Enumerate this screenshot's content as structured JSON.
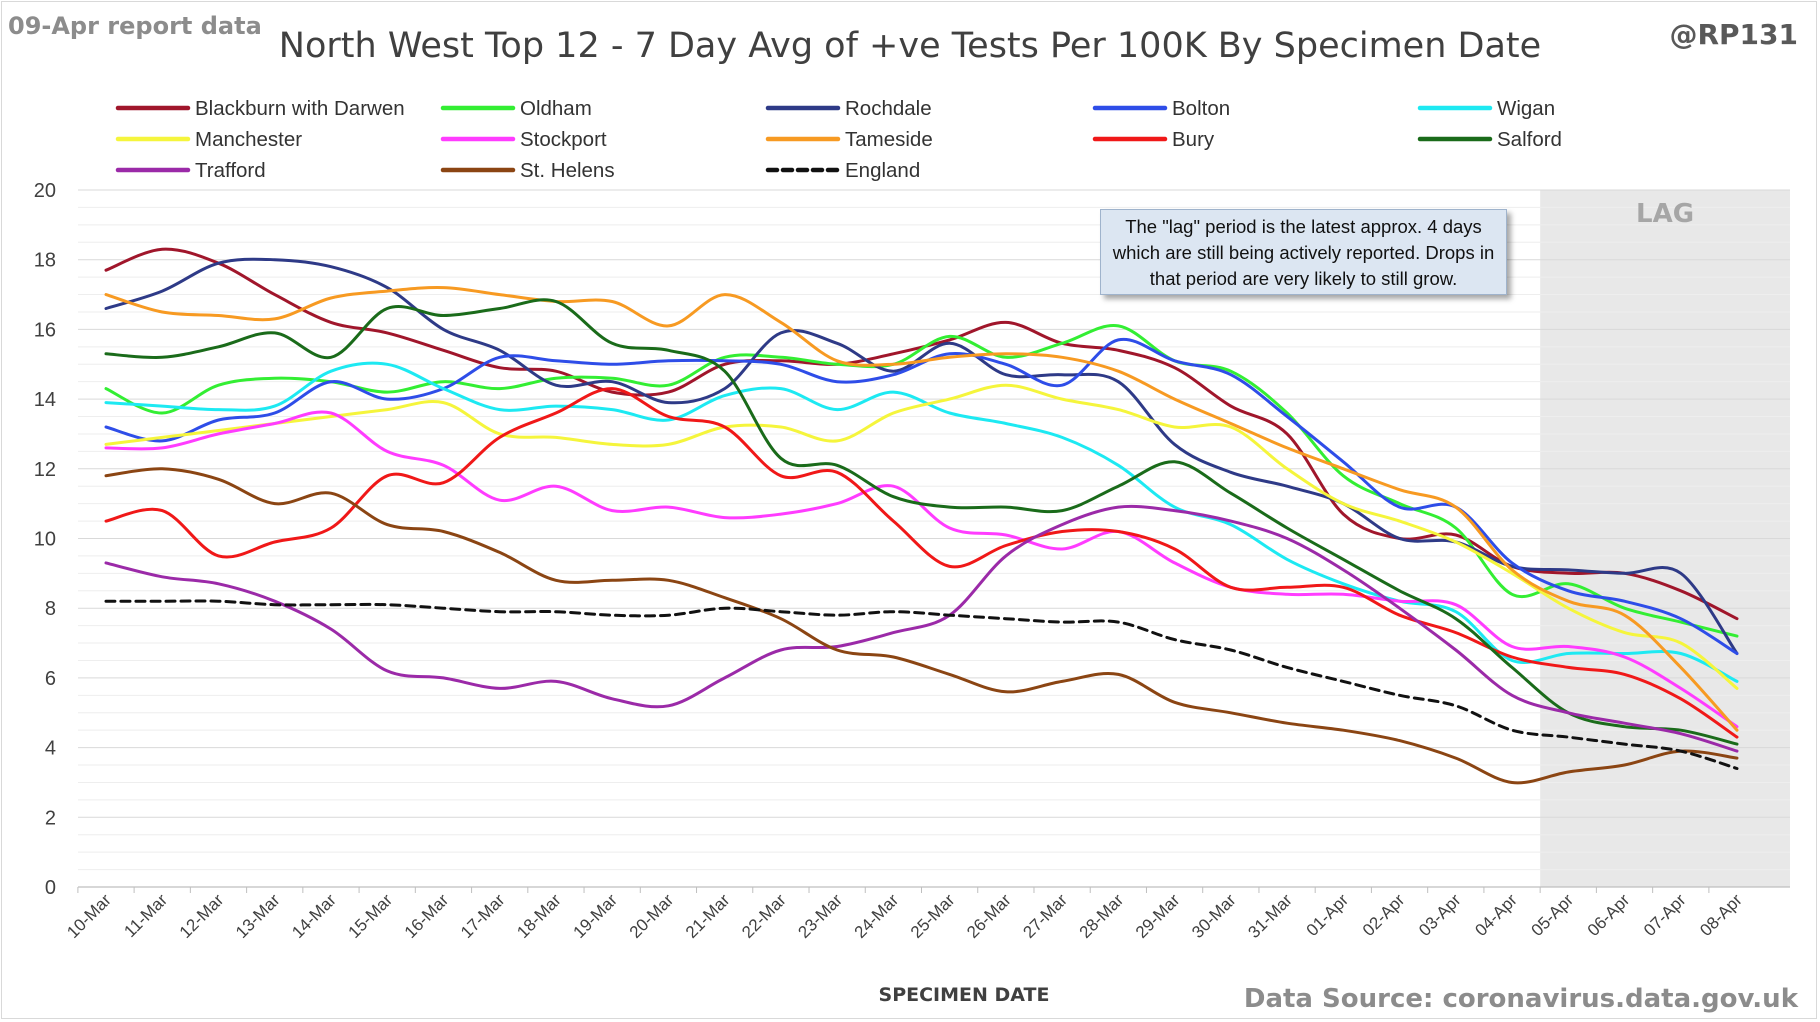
{
  "header": {
    "report_label": "09-Apr report data",
    "handle": "@RP131",
    "title": "North West Top 12 - 7 Day Avg of +ve Tests Per 100K By Specimen Date",
    "source": "Data Source: coronavirus.data.gov.uk"
  },
  "annotation": {
    "text": "The \"lag\" period is the latest approx. 4 days which are still being actively reported.  Drops in that period are very likely to still grow."
  },
  "colors": {
    "lag_shade": "#e8e8e8",
    "gridline": "#d9d9d9",
    "axis_text": "#404040"
  },
  "chart_data": {
    "type": "line",
    "title": "North West Top 12 - 7 Day Avg of +ve Tests Per 100K By Specimen Date",
    "xlabel": "SPECIMEN DATE",
    "ylabel": "",
    "ylim": [
      0,
      20
    ],
    "yticks": [
      0,
      2,
      4,
      6,
      8,
      10,
      12,
      14,
      16,
      18,
      20
    ],
    "grid": true,
    "legend_position": "top",
    "lag_label": "LAG",
    "lag_start": "04-Apr",
    "categories": [
      "10-Mar",
      "11-Mar",
      "12-Mar",
      "13-Mar",
      "14-Mar",
      "15-Mar",
      "16-Mar",
      "17-Mar",
      "18-Mar",
      "19-Mar",
      "20-Mar",
      "21-Mar",
      "22-Mar",
      "23-Mar",
      "24-Mar",
      "25-Mar",
      "26-Mar",
      "27-Mar",
      "28-Mar",
      "29-Mar",
      "30-Mar",
      "31-Mar",
      "01-Apr",
      "02-Apr",
      "03-Apr",
      "04-Apr",
      "05-Apr",
      "06-Apr",
      "07-Apr",
      "08-Apr"
    ],
    "series": [
      {
        "name": "Blackburn with Darwen",
        "color": "#a0162b",
        "dash": false,
        "values": [
          17.7,
          18.3,
          17.9,
          17.0,
          16.2,
          15.9,
          15.4,
          14.9,
          14.8,
          14.2,
          14.2,
          15.0,
          15.1,
          15.0,
          15.3,
          15.7,
          16.2,
          15.6,
          15.4,
          14.9,
          13.8,
          13.0,
          10.7,
          10.0,
          10.1,
          9.2,
          9.0,
          9.0,
          8.5,
          7.7
        ]
      },
      {
        "name": "Oldham",
        "color": "#33ee33",
        "dash": false,
        "values": [
          14.3,
          13.6,
          14.4,
          14.6,
          14.5,
          14.2,
          14.5,
          14.3,
          14.6,
          14.6,
          14.4,
          15.2,
          15.2,
          15.0,
          15.0,
          15.8,
          15.2,
          15.6,
          16.1,
          15.1,
          14.8,
          13.6,
          11.8,
          11.0,
          10.3,
          8.4,
          8.7,
          8.0,
          7.6,
          7.2
        ]
      },
      {
        "name": "Rochdale",
        "color": "#2e3a87",
        "dash": false,
        "values": [
          16.6,
          17.1,
          17.9,
          18.0,
          17.8,
          17.2,
          16.0,
          15.4,
          14.4,
          14.5,
          13.9,
          14.3,
          15.9,
          15.6,
          14.8,
          15.6,
          14.7,
          14.7,
          14.5,
          12.7,
          11.9,
          11.5,
          11.0,
          10.0,
          9.9,
          9.2,
          9.1,
          9.0,
          9.0,
          6.7
        ]
      },
      {
        "name": "Bolton",
        "color": "#2e4de8",
        "dash": false,
        "values": [
          13.2,
          12.8,
          13.4,
          13.6,
          14.5,
          14.0,
          14.3,
          15.2,
          15.1,
          15.0,
          15.1,
          15.1,
          15.0,
          14.5,
          14.7,
          15.3,
          15.0,
          14.4,
          15.7,
          15.1,
          14.7,
          13.5,
          12.2,
          10.9,
          10.9,
          9.3,
          8.5,
          8.2,
          7.7,
          6.7
        ]
      },
      {
        "name": "Wigan",
        "color": "#1de9f2",
        "dash": false,
        "values": [
          13.9,
          13.8,
          13.7,
          13.8,
          14.8,
          15.0,
          14.3,
          13.7,
          13.8,
          13.7,
          13.4,
          14.1,
          14.3,
          13.7,
          14.2,
          13.6,
          13.3,
          12.9,
          12.1,
          10.9,
          10.4,
          9.4,
          8.7,
          8.2,
          7.9,
          6.5,
          6.7,
          6.7,
          6.7,
          5.9
        ]
      },
      {
        "name": "Manchester",
        "color": "#f5f53c",
        "dash": false,
        "values": [
          12.7,
          12.9,
          13.1,
          13.3,
          13.5,
          13.7,
          13.9,
          13.0,
          12.9,
          12.7,
          12.7,
          13.2,
          13.2,
          12.8,
          13.6,
          14.0,
          14.4,
          14.0,
          13.7,
          13.2,
          13.2,
          12.0,
          11.0,
          10.5,
          9.9,
          9.0,
          8.0,
          7.3,
          7.0,
          5.7
        ]
      },
      {
        "name": "Stockport",
        "color": "#ff3cff",
        "dash": false,
        "values": [
          12.6,
          12.6,
          13.0,
          13.3,
          13.6,
          12.5,
          12.1,
          11.1,
          11.5,
          10.8,
          10.9,
          10.6,
          10.7,
          11.0,
          11.5,
          10.3,
          10.1,
          9.7,
          10.2,
          9.3,
          8.6,
          8.4,
          8.4,
          8.2,
          8.1,
          6.9,
          6.9,
          6.6,
          5.7,
          4.6
        ]
      },
      {
        "name": "Tameside",
        "color": "#f79a22",
        "dash": false,
        "values": [
          17.0,
          16.5,
          16.4,
          16.3,
          16.9,
          17.1,
          17.2,
          17.0,
          16.8,
          16.8,
          16.1,
          17.0,
          16.2,
          15.1,
          15.0,
          15.2,
          15.3,
          15.2,
          14.8,
          14.0,
          13.3,
          12.6,
          12.0,
          11.4,
          10.9,
          9.1,
          8.2,
          7.8,
          6.3,
          4.5
        ]
      },
      {
        "name": "Bury",
        "color": "#f01818",
        "dash": false,
        "values": [
          10.5,
          10.8,
          9.5,
          9.9,
          10.3,
          11.8,
          11.6,
          12.9,
          13.6,
          14.3,
          13.5,
          13.2,
          11.8,
          11.9,
          10.5,
          9.2,
          9.8,
          10.2,
          10.2,
          9.7,
          8.6,
          8.6,
          8.6,
          7.8,
          7.3,
          6.6,
          6.3,
          6.1,
          5.4,
          4.3
        ]
      },
      {
        "name": "Salford",
        "color": "#1a6b1a",
        "dash": false,
        "values": [
          15.3,
          15.2,
          15.5,
          15.9,
          15.2,
          16.6,
          16.4,
          16.6,
          16.8,
          15.6,
          15.4,
          14.8,
          12.3,
          12.1,
          11.2,
          10.9,
          10.9,
          10.8,
          11.5,
          12.2,
          11.3,
          10.3,
          9.4,
          8.5,
          7.7,
          6.3,
          5.0,
          4.6,
          4.5,
          4.1
        ]
      },
      {
        "name": "Trafford",
        "color": "#9b2aa8",
        "dash": false,
        "values": [
          9.3,
          8.9,
          8.7,
          8.2,
          7.4,
          6.2,
          6.0,
          5.7,
          5.9,
          5.4,
          5.2,
          6.0,
          6.8,
          6.9,
          7.3,
          7.8,
          9.5,
          10.4,
          10.9,
          10.8,
          10.5,
          10.0,
          9.1,
          8.0,
          6.8,
          5.5,
          5.0,
          4.7,
          4.4,
          3.9
        ]
      },
      {
        "name": "St. Helens",
        "color": "#8b4513",
        "dash": false,
        "values": [
          11.8,
          12.0,
          11.7,
          11.0,
          11.3,
          10.4,
          10.2,
          9.6,
          8.8,
          8.8,
          8.8,
          8.3,
          7.7,
          6.8,
          6.6,
          6.1,
          5.6,
          5.9,
          6.1,
          5.3,
          5.0,
          4.7,
          4.5,
          4.2,
          3.7,
          3.0,
          3.3,
          3.5,
          3.9,
          3.7
        ]
      },
      {
        "name": "England",
        "color": "#111111",
        "dash": true,
        "values": [
          8.2,
          8.2,
          8.2,
          8.1,
          8.1,
          8.1,
          8.0,
          7.9,
          7.9,
          7.8,
          7.8,
          8.0,
          7.9,
          7.8,
          7.9,
          7.8,
          7.7,
          7.6,
          7.6,
          7.1,
          6.8,
          6.3,
          5.9,
          5.5,
          5.2,
          4.5,
          4.3,
          4.1,
          3.9,
          3.4
        ]
      }
    ]
  }
}
